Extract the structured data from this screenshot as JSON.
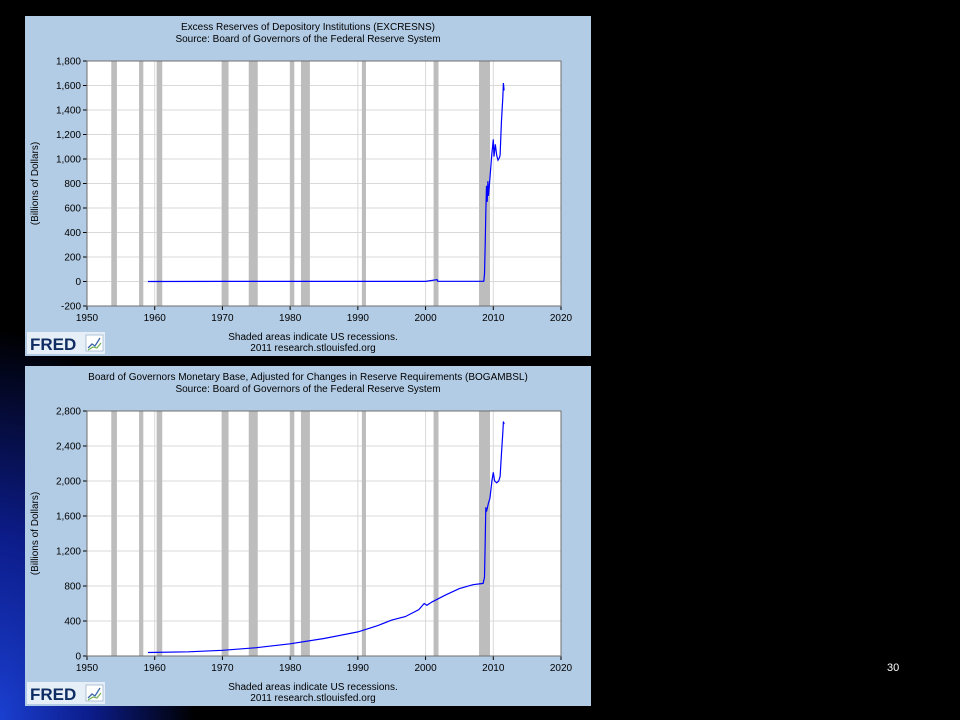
{
  "slide": {
    "number": "30"
  },
  "chart_data": [
    {
      "type": "line",
      "title": "Excess Reserves of Depository Institutions (EXCRESNS)",
      "subtitle": "Source: Board of Governors of the Federal Reserve System",
      "ylabel": "(Billions of Dollars)",
      "xlabel": "",
      "xlim": [
        1950,
        2020
      ],
      "ylim": [
        -200,
        1800
      ],
      "x_ticks": [
        "1950",
        "1960",
        "1970",
        "1980",
        "1990",
        "2000",
        "2010",
        "2020"
      ],
      "y_ticks": [
        "-200",
        "0",
        "200",
        "400",
        "600",
        "800",
        "1,000",
        "1,200",
        "1,400",
        "1,600",
        "1,800"
      ],
      "grid": true,
      "recessions": [
        [
          1953.6,
          1954.4
        ],
        [
          1957.7,
          1958.3
        ],
        [
          1960.3,
          1961.1
        ],
        [
          1969.9,
          1970.9
        ],
        [
          1973.9,
          1975.2
        ],
        [
          1980.0,
          1980.6
        ],
        [
          1981.6,
          1982.9
        ],
        [
          1990.6,
          1991.2
        ],
        [
          2001.2,
          2001.9
        ],
        [
          2007.9,
          2009.5
        ]
      ],
      "series": [
        {
          "color": "#0000ff",
          "points": [
            [
              1959.0,
              0
            ],
            [
              1970.0,
              1
            ],
            [
              1980.0,
              1
            ],
            [
              1990.0,
              1
            ],
            [
              2000.0,
              1
            ],
            [
              2001.7,
              15
            ],
            [
              2001.8,
              2
            ],
            [
              2008.6,
              2
            ],
            [
              2008.7,
              60
            ],
            [
              2008.8,
              300
            ],
            [
              2008.9,
              560
            ],
            [
              2009.0,
              780
            ],
            [
              2009.1,
              650
            ],
            [
              2009.2,
              820
            ],
            [
              2009.3,
              700
            ],
            [
              2009.5,
              840
            ],
            [
              2009.8,
              1050
            ],
            [
              2009.9,
              1100
            ],
            [
              2010.0,
              1160
            ],
            [
              2010.1,
              1020
            ],
            [
              2010.3,
              1120
            ],
            [
              2010.5,
              1030
            ],
            [
              2010.7,
              990
            ],
            [
              2010.9,
              1010
            ],
            [
              2011.0,
              1030
            ],
            [
              2011.2,
              1300
            ],
            [
              2011.4,
              1500
            ],
            [
              2011.5,
              1620
            ],
            [
              2011.6,
              1560
            ]
          ]
        }
      ],
      "footer_note": "Shaded areas indicate US recessions.",
      "footer_source": "2011 research.stlouisfed.org",
      "logo": "FRED"
    },
    {
      "type": "line",
      "title": "Board of Governors Monetary Base, Adjusted for Changes in Reserve Requirements (BOGAMBSL)",
      "subtitle": "Source: Board of Governors of the Federal Reserve System",
      "ylabel": "(Billions of Dollars)",
      "xlabel": "",
      "xlim": [
        1950,
        2020
      ],
      "ylim": [
        0,
        2800
      ],
      "x_ticks": [
        "1950",
        "1960",
        "1970",
        "1980",
        "1990",
        "2000",
        "2010",
        "2020"
      ],
      "y_ticks": [
        "0",
        "400",
        "800",
        "1,200",
        "1,600",
        "2,000",
        "2,400",
        "2,800"
      ],
      "grid": true,
      "recessions": [
        [
          1953.6,
          1954.4
        ],
        [
          1957.7,
          1958.3
        ],
        [
          1960.3,
          1961.1
        ],
        [
          1969.9,
          1970.9
        ],
        [
          1973.9,
          1975.2
        ],
        [
          1980.0,
          1980.6
        ],
        [
          1981.6,
          1982.9
        ],
        [
          1990.6,
          1991.2
        ],
        [
          2001.2,
          2001.9
        ],
        [
          2007.9,
          2009.5
        ]
      ],
      "series": [
        {
          "color": "#0000ff",
          "points": [
            [
              1959.0,
              40
            ],
            [
              1965.0,
              48
            ],
            [
              1970.0,
              65
            ],
            [
              1975.0,
              95
            ],
            [
              1980.0,
              140
            ],
            [
              1985.0,
              200
            ],
            [
              1990.0,
              275
            ],
            [
              1993.0,
              350
            ],
            [
              1995.0,
              410
            ],
            [
              1997.0,
              450
            ],
            [
              1999.0,
              530
            ],
            [
              1999.8,
              600
            ],
            [
              2000.2,
              580
            ],
            [
              2001.0,
              620
            ],
            [
              2003.0,
              700
            ],
            [
              2005.0,
              770
            ],
            [
              2007.0,
              815
            ],
            [
              2008.5,
              830
            ],
            [
              2008.7,
              900
            ],
            [
              2008.8,
              1300
            ],
            [
              2008.9,
              1700
            ],
            [
              2009.0,
              1650
            ],
            [
              2009.3,
              1750
            ],
            [
              2009.5,
              1800
            ],
            [
              2009.8,
              2000
            ],
            [
              2010.0,
              2100
            ],
            [
              2010.2,
              2000
            ],
            [
              2010.5,
              1980
            ],
            [
              2010.8,
              2000
            ],
            [
              2011.0,
              2050
            ],
            [
              2011.2,
              2300
            ],
            [
              2011.4,
              2550
            ],
            [
              2011.5,
              2680
            ],
            [
              2011.6,
              2650
            ]
          ]
        }
      ],
      "footer_note": "Shaded areas indicate US recessions.",
      "footer_source": "2011 research.stlouisfed.org",
      "logo": "FRED"
    }
  ]
}
